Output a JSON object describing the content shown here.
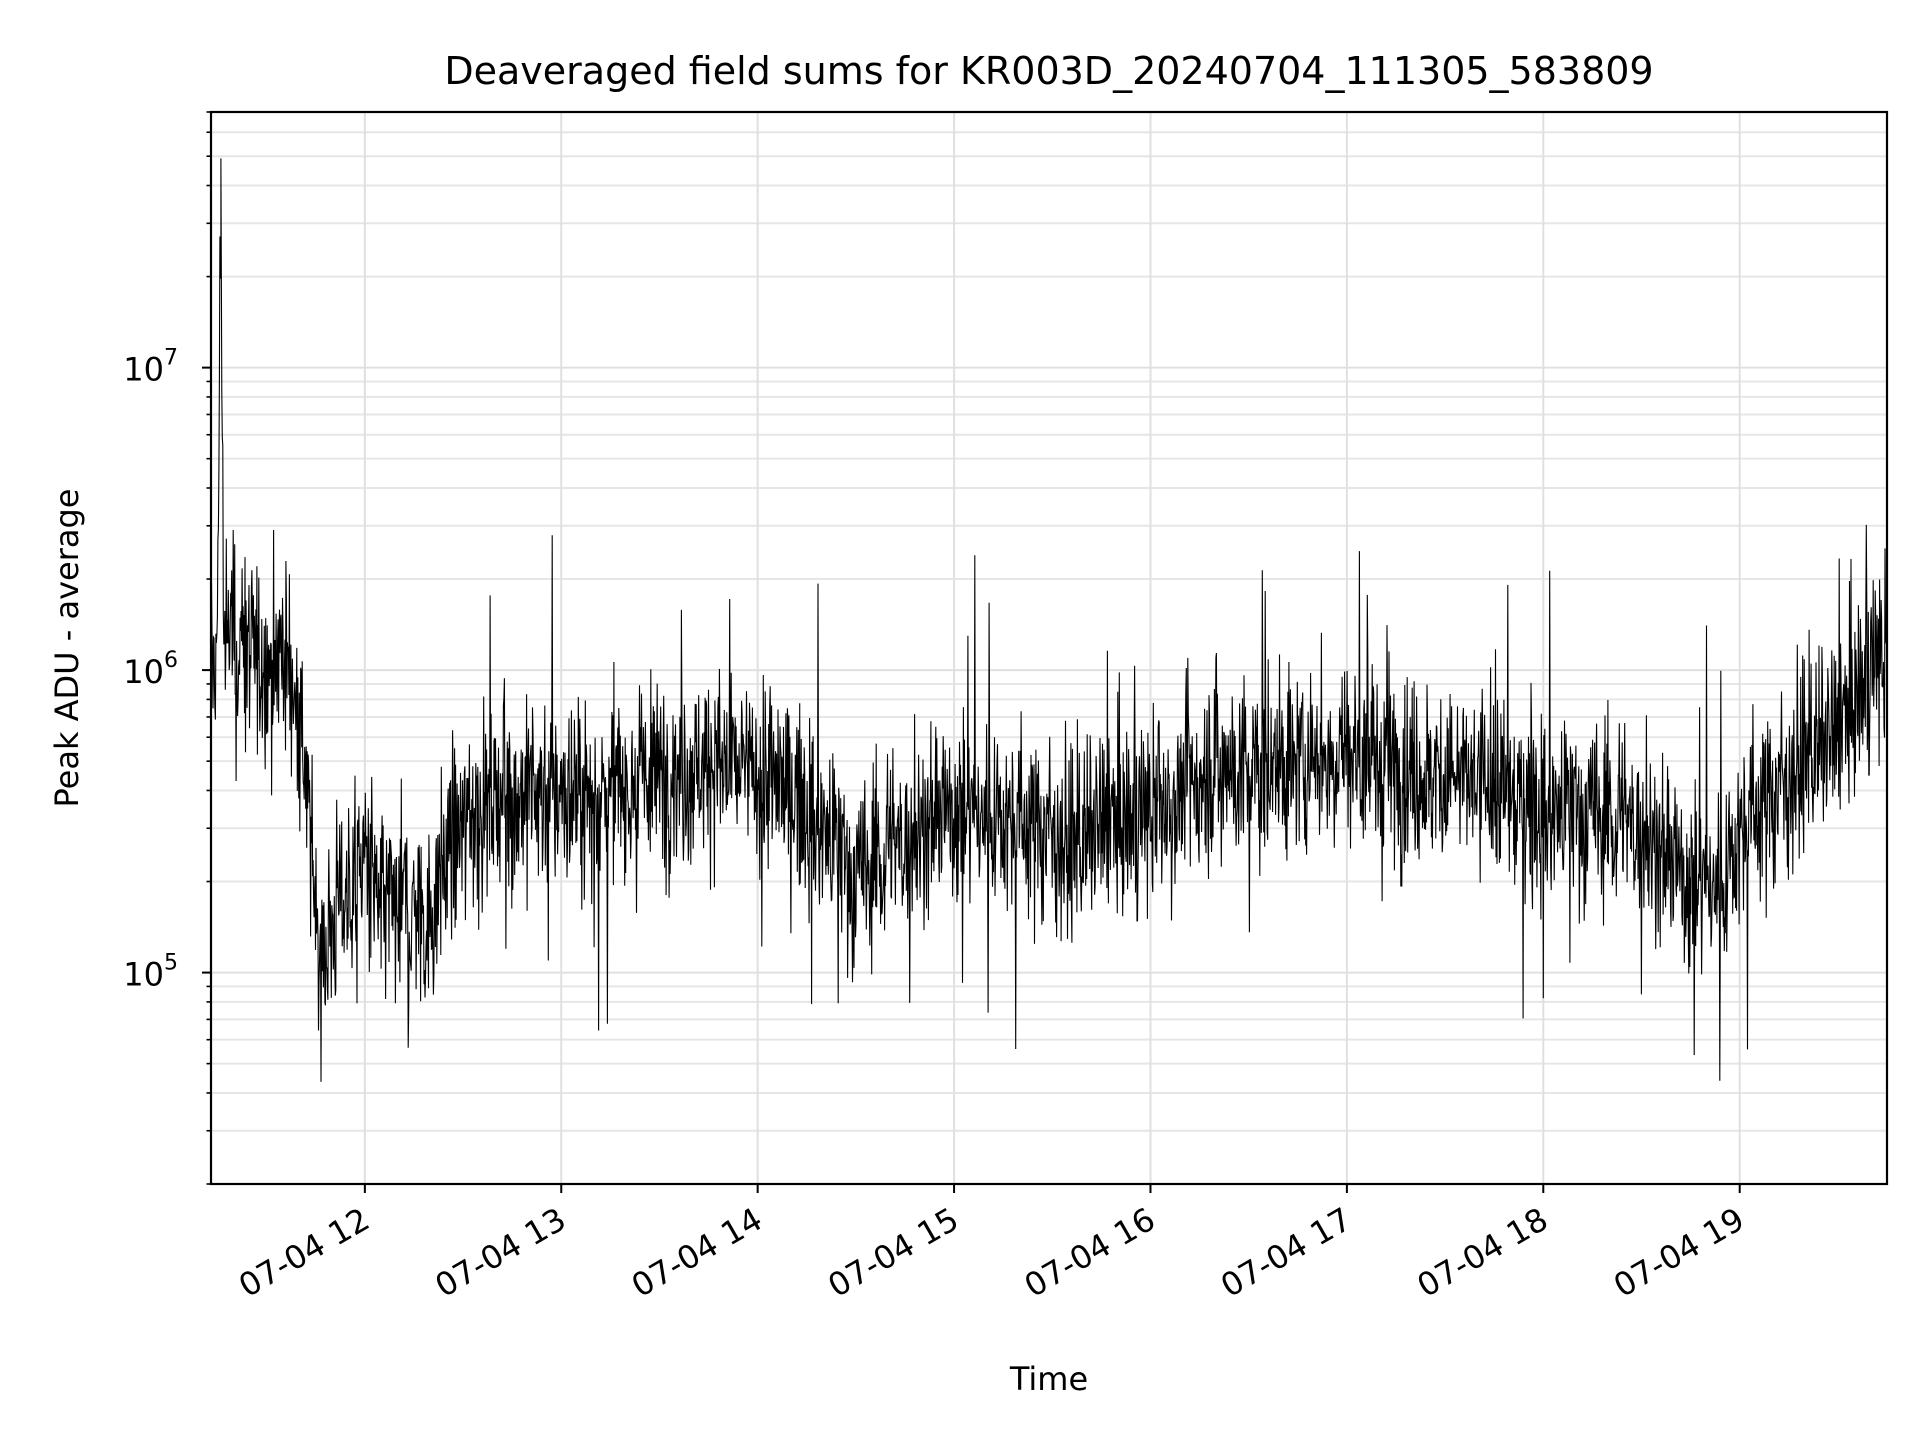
{
  "chart_data": {
    "type": "line",
    "title": "Deaveraged field sums for KR003D_20240704_111305_583809",
    "xlabel": "Time",
    "ylabel": "Peak ADU - average",
    "x_scale": "time",
    "y_scale": "log",
    "xlim": [
      "2024-07-04 11:13",
      "2024-07-04 19:45"
    ],
    "ylim": [
      20000,
      70000000
    ],
    "x_ticks": [
      {
        "label": "07-04 12",
        "value": "2024-07-04 12:00"
      },
      {
        "label": "07-04 13",
        "value": "2024-07-04 13:00"
      },
      {
        "label": "07-04 14",
        "value": "2024-07-04 14:00"
      },
      {
        "label": "07-04 15",
        "value": "2024-07-04 15:00"
      },
      {
        "label": "07-04 16",
        "value": "2024-07-04 16:00"
      },
      {
        "label": "07-04 17",
        "value": "2024-07-04 17:00"
      },
      {
        "label": "07-04 18",
        "value": "2024-07-04 18:00"
      },
      {
        "label": "07-04 19",
        "value": "2024-07-04 19:00"
      }
    ],
    "y_ticks": [
      {
        "base": "10",
        "exp": "5",
        "value": 100000
      },
      {
        "base": "10",
        "exp": "6",
        "value": 1000000
      },
      {
        "base": "10",
        "exp": "7",
        "value": 10000000
      }
    ],
    "grid": true,
    "line_color": "#000000",
    "series": [
      {
        "x": [
          "2024-07-04 11:13",
          "2024-07-04 11:15",
          "2024-07-04 11:16",
          "2024-07-04 11:17",
          "2024-07-04 11:19",
          "2024-07-04 11:20",
          "2024-07-04 11:25",
          "2024-07-04 11:30",
          "2024-07-04 11:35",
          "2024-07-04 11:40",
          "2024-07-04 11:43",
          "2024-07-04 11:46",
          "2024-07-04 11:48",
          "2024-07-04 11:50",
          "2024-07-04 11:53",
          "2024-07-04 11:56",
          "2024-07-04 12:00",
          "2024-07-04 12:05",
          "2024-07-04 12:10",
          "2024-07-04 12:15",
          "2024-07-04 12:20",
          "2024-07-04 12:25",
          "2024-07-04 12:30",
          "2024-07-04 12:35",
          "2024-07-04 12:40",
          "2024-07-04 12:45",
          "2024-07-04 12:50",
          "2024-07-04 13:00",
          "2024-07-04 13:15",
          "2024-07-04 13:30",
          "2024-07-04 13:45",
          "2024-07-04 14:00",
          "2024-07-04 14:10",
          "2024-07-04 14:15",
          "2024-07-04 14:20",
          "2024-07-04 14:30",
          "2024-07-04 14:40",
          "2024-07-04 14:50",
          "2024-07-04 15:00",
          "2024-07-04 15:15",
          "2024-07-04 15:30",
          "2024-07-04 15:36",
          "2024-07-04 15:45",
          "2024-07-04 16:00",
          "2024-07-04 16:10",
          "2024-07-04 16:20",
          "2024-07-04 16:30",
          "2024-07-04 16:45",
          "2024-07-04 17:00",
          "2024-07-04 17:10",
          "2024-07-04 17:20",
          "2024-07-04 17:30",
          "2024-07-04 17:45",
          "2024-07-04 18:00",
          "2024-07-04 18:15",
          "2024-07-04 18:30",
          "2024-07-04 18:36",
          "2024-07-04 18:45",
          "2024-07-04 18:55",
          "2024-07-04 19:00",
          "2024-07-04 19:10",
          "2024-07-04 19:20",
          "2024-07-04 19:30",
          "2024-07-04 19:40",
          "2024-07-04 19:45"
        ],
        "y": [
          1000000,
          1200000,
          45000000,
          1100000,
          1500000,
          1200000,
          1100000,
          1000000,
          1200000,
          700000,
          300000,
          130000,
          110000,
          150000,
          180000,
          200000,
          250000,
          150000,
          180000,
          160000,
          150000,
          250000,
          300000,
          350000,
          400000,
          350000,
          400000,
          380000,
          400000,
          450000,
          500000,
          450000,
          400000,
          350000,
          300000,
          200000,
          250000,
          300000,
          350000,
          330000,
          300000,
          250000,
          300000,
          330000,
          400000,
          500000,
          450000,
          500000,
          550000,
          500000,
          450000,
          450000,
          400000,
          350000,
          330000,
          300000,
          250000,
          200000,
          200000,
          300000,
          400000,
          500000,
          600000,
          1000000,
          1100000
        ]
      }
    ]
  }
}
